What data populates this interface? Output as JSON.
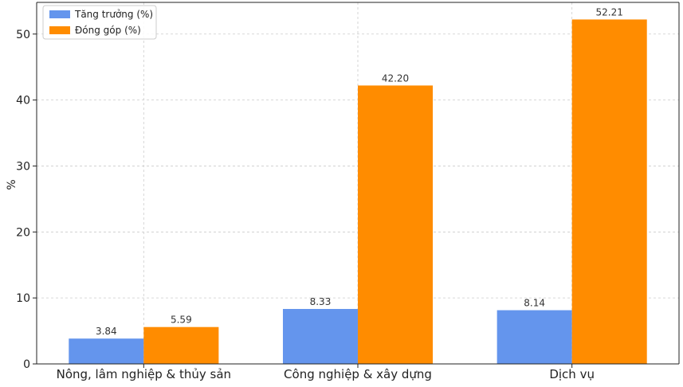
{
  "chart_data": {
    "type": "bar",
    "categories": [
      "Nông, lâm nghiệp & thủy sản",
      "Công nghiệp & xây dựng",
      "Dịch vụ"
    ],
    "series": [
      {
        "name": "Tăng trưởng (%)",
        "values": [
          3.84,
          8.33,
          8.14
        ],
        "color": "#6495ED"
      },
      {
        "name": "Đóng góp (%)",
        "values": [
          5.59,
          42.2,
          52.21
        ],
        "color": "#FF8C00"
      }
    ],
    "value_labels": [
      [
        "3.84",
        "8.33",
        "8.14"
      ],
      [
        "5.59",
        "42.20",
        "52.21"
      ]
    ],
    "title": "",
    "xlabel": "",
    "ylabel": "%",
    "yticks": [
      0,
      10,
      20,
      30,
      40,
      50
    ],
    "ylim": [
      0,
      54.8
    ],
    "grid": true,
    "legend_position": "top-left"
  }
}
